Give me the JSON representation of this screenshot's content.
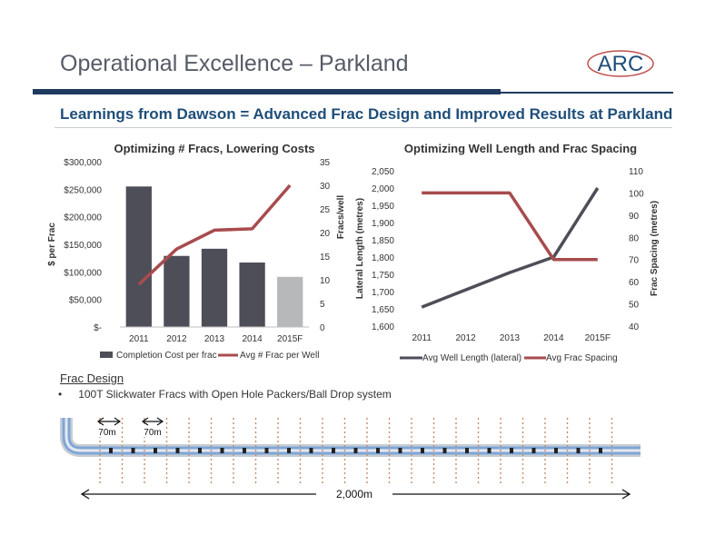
{
  "page": {
    "title": "Operational Excellence – Parkland",
    "subtitle": "Learnings from Dawson = Advanced Frac Design and Improved Results at Parkland",
    "logo_text": "ARC",
    "colors": {
      "navy": "#1f3a5f",
      "blue_text": "#1f4e79",
      "bar_dark": "#4d4e57",
      "bar_light": "#b7b8ba",
      "line_red": "#a84b4d",
      "line_gray": "#4d4e57",
      "pipe_blue": "#7fa6d6"
    }
  },
  "frac_design": {
    "heading": "Frac Design",
    "bullet_symbol": "•",
    "bullet": "100T Slickwater Fracs with Open Hole Packers/Ball Drop system",
    "spacing_label_1": "70m",
    "spacing_label_2": "70m",
    "length_label": "2,000m",
    "icons": [
      "well-pipe",
      "fracture-marks",
      "packer",
      "double-arrow"
    ]
  },
  "chart_data": [
    {
      "type": "bar",
      "title": "Optimizing # Fracs, Lowering Costs",
      "categories": [
        "2011",
        "2012",
        "2013",
        "2014",
        "2015F"
      ],
      "series": [
        {
          "name": "Completion Cost per frac",
          "kind": "bar",
          "axis": "left",
          "values": [
            255000,
            129000,
            142000,
            117000,
            91000
          ],
          "colors": [
            "#4d4e57",
            "#4d4e57",
            "#4d4e57",
            "#4d4e57",
            "#b7b8ba"
          ]
        },
        {
          "name": "Avg # Frac per Well",
          "kind": "line",
          "axis": "right",
          "values": [
            9,
            16.5,
            20.5,
            20.8,
            30
          ],
          "color": "#a84b4d"
        }
      ],
      "ylabel": "$ per Frac",
      "y2label": "Fracs/well",
      "ylim": [
        0,
        300000
      ],
      "y2lim": [
        0,
        35
      ],
      "yticks": [
        "$-",
        "$50,000",
        "$100,000",
        "$150,000",
        "$200,000",
        "$250,000",
        "$300,000"
      ],
      "y2ticks": [
        "0",
        "5",
        "10",
        "15",
        "20",
        "25",
        "30",
        "35"
      ],
      "legend": "bottom"
    },
    {
      "type": "line",
      "title": "Optimizing Well Length and Frac Spacing",
      "categories": [
        "2011",
        "2012",
        "2013",
        "2014",
        "2015F"
      ],
      "series": [
        {
          "name": "Avg Well Length (lateral)",
          "axis": "left",
          "values": [
            1655,
            1705,
            1755,
            1800,
            2000
          ],
          "color": "#4d4e57"
        },
        {
          "name": "Avg Frac Spacing",
          "axis": "right",
          "values": [
            100,
            100,
            100,
            70,
            70
          ],
          "color": "#a84b4d"
        }
      ],
      "ylabel": "Lateral Length (metres)",
      "y2label": "Frac Spacing (metres)",
      "ylim": [
        1600,
        2050
      ],
      "y2lim": [
        40,
        110
      ],
      "yticks": [
        "1,600",
        "1,650",
        "1,700",
        "1,750",
        "1,800",
        "1,850",
        "1,900",
        "1,950",
        "2,000",
        "2,050"
      ],
      "y2ticks": [
        "40",
        "50",
        "60",
        "70",
        "80",
        "90",
        "100",
        "110"
      ],
      "legend": "bottom"
    }
  ]
}
